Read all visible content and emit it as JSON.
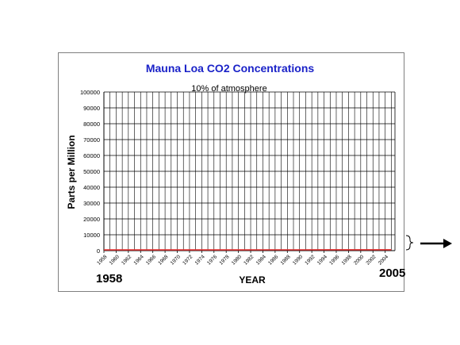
{
  "chart_data": {
    "type": "line",
    "title": "Mauna Loa CO2 Concentrations",
    "annotation": "10% of atmosphere",
    "xlabel": "YEAR",
    "ylabel": "Parts per Million",
    "ylim": [
      0,
      100000
    ],
    "yticks": [
      0,
      10000,
      20000,
      30000,
      40000,
      50000,
      60000,
      70000,
      80000,
      90000,
      100000
    ],
    "xticks": [
      1958,
      1960,
      1962,
      1964,
      1966,
      1968,
      1970,
      1972,
      1974,
      1976,
      1978,
      1980,
      1982,
      1984,
      1986,
      1988,
      1990,
      1992,
      1994,
      1996,
      1998,
      2000,
      2002,
      2004
    ],
    "grid": true,
    "series_color": "#e03030",
    "title_color": "#1a22c8",
    "series": [
      {
        "x": [
          1958,
          1960,
          1965,
          1970,
          1975,
          1980,
          1985,
          1990,
          1995,
          2000,
          2005
        ],
        "values": [
          315,
          317,
          320,
          325,
          331,
          338,
          346,
          354,
          361,
          369,
          379
        ]
      }
    ]
  },
  "labels": {
    "start_year": "1958",
    "end_year": "2005"
  }
}
